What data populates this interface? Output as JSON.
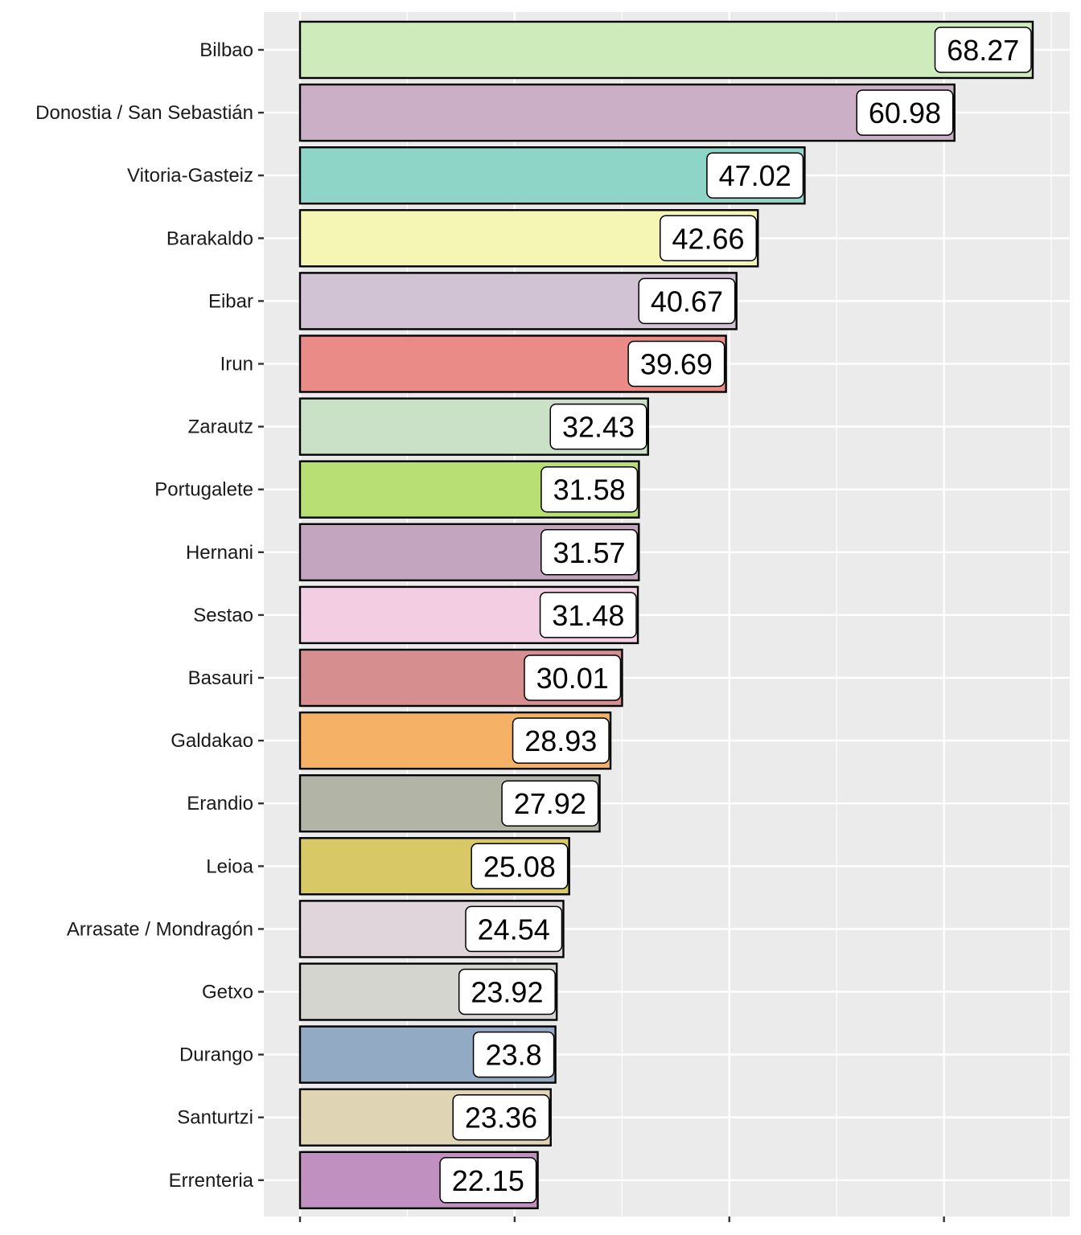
{
  "chart_data": {
    "type": "bar",
    "orientation": "horizontal",
    "title": "",
    "xlabel": "",
    "ylabel": "",
    "xlim": [
      0,
      70
    ],
    "x_ticks_shown_without_labels": [
      0,
      20,
      40,
      60
    ],
    "grid": true,
    "legend": "none",
    "categories": [
      "Bilbao",
      "Donostia / San Sebastián",
      "Vitoria-Gasteiz",
      "Barakaldo",
      "Eibar",
      "Irun",
      "Zarautz",
      "Portugalete",
      "Hernani",
      "Sestao",
      "Basauri",
      "Galdakao",
      "Erandio",
      "Leioa",
      "Arrasate / Mondragón",
      "Getxo",
      "Durango",
      "Santurtzi",
      "Errenteria"
    ],
    "values": [
      68.27,
      60.98,
      47.02,
      42.66,
      40.67,
      39.69,
      32.43,
      31.58,
      31.57,
      31.48,
      30.01,
      28.93,
      27.92,
      25.08,
      24.54,
      23.92,
      23.8,
      23.36,
      22.15
    ],
    "data_labels": [
      "68.27",
      "60.98",
      "47.02",
      "42.66",
      "40.67",
      "39.69",
      "32.43",
      "31.58",
      "31.57",
      "31.48",
      "30.01",
      "28.93",
      "27.92",
      "25.08",
      "24.54",
      "23.92",
      "23.8",
      "23.36",
      "22.15"
    ],
    "colors": [
      "#cdebbb",
      "#cbafc7",
      "#8ed5c8",
      "#f5f6b4",
      "#d2c3d4",
      "#ea8b88",
      "#cae1c7",
      "#b7df73",
      "#c3a5c0",
      "#f3cee3",
      "#d68e8e",
      "#f5b266",
      "#b2b4a6",
      "#d8c966",
      "#e1d5dc",
      "#d5d5cf",
      "#92aac4",
      "#dfd5b4",
      "#c090c0"
    ]
  }
}
